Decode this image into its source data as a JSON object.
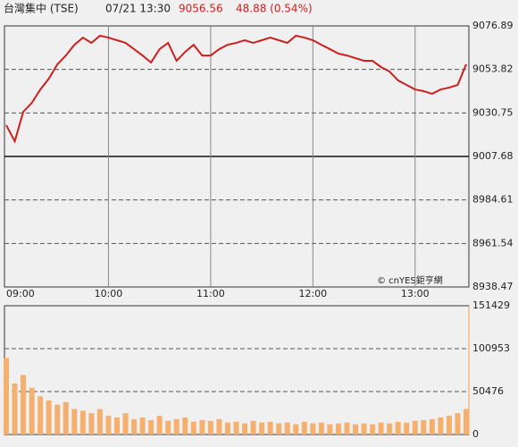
{
  "header": {
    "name": "台灣集中 (TSE)",
    "time": "07/21 13:30",
    "price": "9056.56",
    "change": "48.88 (0.54%)"
  },
  "watermark": "© cnYES鉅亨網",
  "chart_data": [
    {
      "type": "line",
      "color": "#cc1f1f",
      "baseline": 9007.68,
      "x": [
        "09:00",
        "09:05",
        "09:10",
        "09:15",
        "09:20",
        "09:25",
        "09:30",
        "09:35",
        "09:40",
        "09:45",
        "09:50",
        "09:55",
        "10:00",
        "10:05",
        "10:10",
        "10:15",
        "10:20",
        "10:25",
        "10:30",
        "10:35",
        "10:40",
        "10:45",
        "10:50",
        "10:55",
        "11:00",
        "11:05",
        "11:10",
        "11:15",
        "11:20",
        "11:25",
        "11:30",
        "11:35",
        "11:40",
        "11:45",
        "11:50",
        "11:55",
        "12:00",
        "12:05",
        "12:10",
        "12:15",
        "12:20",
        "12:25",
        "12:30",
        "12:35",
        "12:40",
        "12:45",
        "12:50",
        "12:55",
        "13:00",
        "13:05",
        "13:10",
        "13:15",
        "13:20",
        "13:25",
        "13:30"
      ],
      "values": [
        9024.3,
        9015.7,
        9031.4,
        9036.1,
        9043.2,
        9048.9,
        9056.5,
        9061.2,
        9066.9,
        9070.7,
        9067.9,
        9071.7,
        9070.7,
        9069.3,
        9067.9,
        9064.6,
        9061.2,
        9057.5,
        9064.6,
        9067.9,
        9058.4,
        9063.1,
        9066.9,
        9061.2,
        9061.2,
        9064.6,
        9066.9,
        9067.9,
        9069.3,
        9067.9,
        9069.3,
        9070.7,
        9069.3,
        9067.9,
        9071.7,
        9070.7,
        9069.3,
        9066.9,
        9064.6,
        9062.2,
        9061.2,
        9059.8,
        9058.4,
        9058.4,
        9055.1,
        9052.7,
        9048.0,
        9045.6,
        9043.2,
        9042.3,
        9040.9,
        9043.2,
        9044.2,
        9045.6,
        9056.56
      ],
      "xlim": [
        "09:00",
        "13:30"
      ],
      "xticks": [
        "09:00",
        "10:00",
        "11:00",
        "12:00",
        "13:00"
      ],
      "ylim": [
        8938.47,
        9076.89
      ],
      "yticks": [
        8938.47,
        8961.54,
        8984.61,
        9007.68,
        9030.75,
        9053.82,
        9076.89
      ]
    },
    {
      "type": "bar",
      "color": "#f5b070",
      "values": [
        90000,
        60000,
        70000,
        55000,
        45000,
        40000,
        35000,
        38000,
        30000,
        28000,
        25000,
        30000,
        22000,
        20000,
        25000,
        18000,
        20000,
        17000,
        22000,
        16000,
        18000,
        20000,
        15000,
        17000,
        16000,
        18000,
        14000,
        15000,
        13000,
        16000,
        14000,
        15000,
        13000,
        14000,
        12000,
        15000,
        13000,
        14000,
        12000,
        13000,
        14000,
        12000,
        13000,
        12000,
        14000,
        13000,
        15000,
        14000,
        16000,
        17000,
        18000,
        20000,
        22000,
        25000,
        30000
      ],
      "ylim": [
        0,
        151429
      ],
      "yticks": [
        0,
        50476,
        100953,
        151429
      ]
    }
  ]
}
